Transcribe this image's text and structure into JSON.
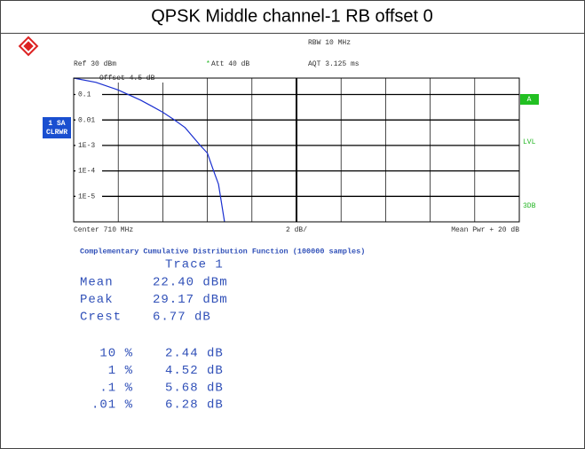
{
  "header": {
    "title": "QPSK Middle channel-1 RB offset 0"
  },
  "instrument": {
    "rbw": "RBW 10 MHz",
    "ref": "Ref 30 dBm",
    "att_flag": "*",
    "att": "Att 40 dB",
    "aqt": "AQT 3.125 ms",
    "offset": "Offset 4.5 dB",
    "trace_mode": [
      "1 SA",
      "CLRWR"
    ],
    "side_a": "A",
    "side_lvl": "LVL",
    "side_3db": "3DB"
  },
  "chart_data": {
    "type": "line",
    "ylog": true,
    "grid": true,
    "x": [
      0,
      1,
      2,
      2.44,
      3,
      3.5,
      4,
      4.52,
      5,
      5.68,
      6.0,
      6.28,
      6.5,
      6.77
    ],
    "series": [
      {
        "color": "#1a2fd0",
        "values": [
          0.44,
          0.3,
          0.15,
          0.1,
          0.06,
          0.035,
          0.02,
          0.01,
          0.005,
          0.001,
          0.0005,
          0.0001,
          3e-05,
          1e-06
        ]
      }
    ],
    "xlim": [
      0,
      20
    ],
    "xticks": [
      0,
      2,
      4,
      6,
      8,
      10,
      12,
      14,
      16,
      18,
      20
    ],
    "ylim": [
      1e-06,
      0.44
    ],
    "yticks": [
      0.1,
      0.01,
      {
        "value": 0.001,
        "label": "1E-3"
      },
      {
        "value": 0.0001,
        "label": "1E-4"
      },
      {
        "value": 1e-05,
        "label": "1E-5"
      }
    ],
    "x_left_label": "Center 710 MHz",
    "x_mid_label": "2 dB/",
    "x_right_label": "Mean Pwr + 20 dB"
  },
  "results": {
    "caption": "Complementary Cumulative Distribution Function (100000 samples)",
    "trace": "Trace 1",
    "stats": [
      {
        "label": "Mean",
        "value": "22.40 dBm"
      },
      {
        "label": "Peak",
        "value": "29.17 dBm"
      },
      {
        "label": "Crest",
        "value": "6.77 dB"
      }
    ],
    "percentiles": [
      {
        "label": "10 %",
        "value": "2.44 dB"
      },
      {
        "label": "1 %",
        "value": "4.52 dB"
      },
      {
        "label": ".1 %",
        "value": "5.68 dB"
      },
      {
        "label": ".01 %",
        "value": "6.28 dB"
      }
    ]
  }
}
